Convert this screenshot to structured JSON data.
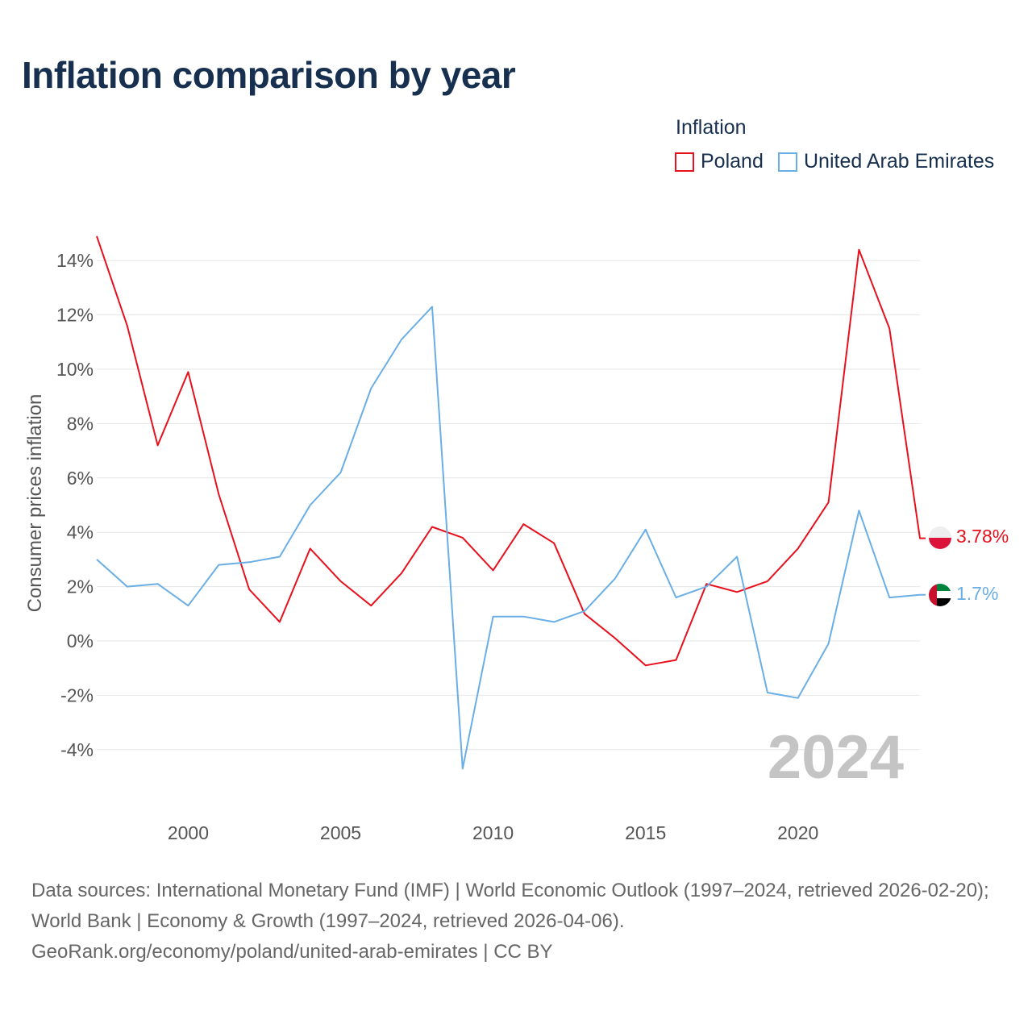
{
  "title": "Inflation comparison by year",
  "legend": {
    "title": "Inflation",
    "items": [
      {
        "name": "Poland",
        "color": "#e8101c"
      },
      {
        "name": "United Arab Emirates",
        "color": "#6aaee6"
      }
    ]
  },
  "source": {
    "line1": "Data sources: International Monetary Fund (IMF) | World Economic Outlook (1997–2024, retrieved 2026-02-20); World Bank | Economy & Growth (1997–2024, retrieved 2026-04-06).",
    "line2": "GeoRank.org/economy/poland/united-arab-emirates | CC BY"
  },
  "chart_data": {
    "type": "line",
    "title": "Inflation comparison by year",
    "xlabel": "",
    "ylabel": "Consumer prices inflation",
    "xlim": [
      1997,
      2024
    ],
    "ylim": [
      -5.8,
      15
    ],
    "x_ticks": [
      2000,
      2005,
      2010,
      2015,
      2020
    ],
    "y_ticks": [
      14,
      12,
      10,
      8,
      6,
      4,
      2,
      0,
      -2,
      -4
    ],
    "y_tick_labels": [
      "14%",
      "12%",
      "10%",
      "8%",
      "6%",
      "4%",
      "2%",
      "0%",
      "-2%",
      "-4%"
    ],
    "year_label": "2024",
    "x": [
      1997,
      1998,
      1999,
      2000,
      2001,
      2002,
      2003,
      2004,
      2005,
      2006,
      2007,
      2008,
      2009,
      2010,
      2011,
      2012,
      2013,
      2014,
      2015,
      2016,
      2017,
      2018,
      2019,
      2020,
      2021,
      2022,
      2023,
      2024
    ],
    "series": [
      {
        "name": "Poland",
        "color": "#e8101c",
        "end_label": "3.78%",
        "values": [
          14.9,
          11.6,
          7.2,
          9.9,
          5.4,
          1.9,
          0.7,
          3.4,
          2.2,
          1.3,
          2.5,
          4.2,
          3.8,
          2.6,
          4.3,
          3.6,
          1.0,
          0.1,
          -0.9,
          -0.7,
          2.1,
          1.8,
          2.2,
          3.4,
          5.1,
          14.4,
          11.5,
          3.78
        ]
      },
      {
        "name": "United Arab Emirates",
        "color": "#6aaee6",
        "end_label": "1.7%",
        "values": [
          3.0,
          2.0,
          2.1,
          1.3,
          2.8,
          2.9,
          3.1,
          5.0,
          6.2,
          9.3,
          11.1,
          12.3,
          -4.7,
          0.9,
          0.9,
          0.7,
          1.1,
          2.3,
          4.1,
          1.6,
          2.0,
          3.1,
          -1.9,
          -2.1,
          -0.1,
          4.8,
          1.6,
          1.7
        ]
      }
    ]
  }
}
